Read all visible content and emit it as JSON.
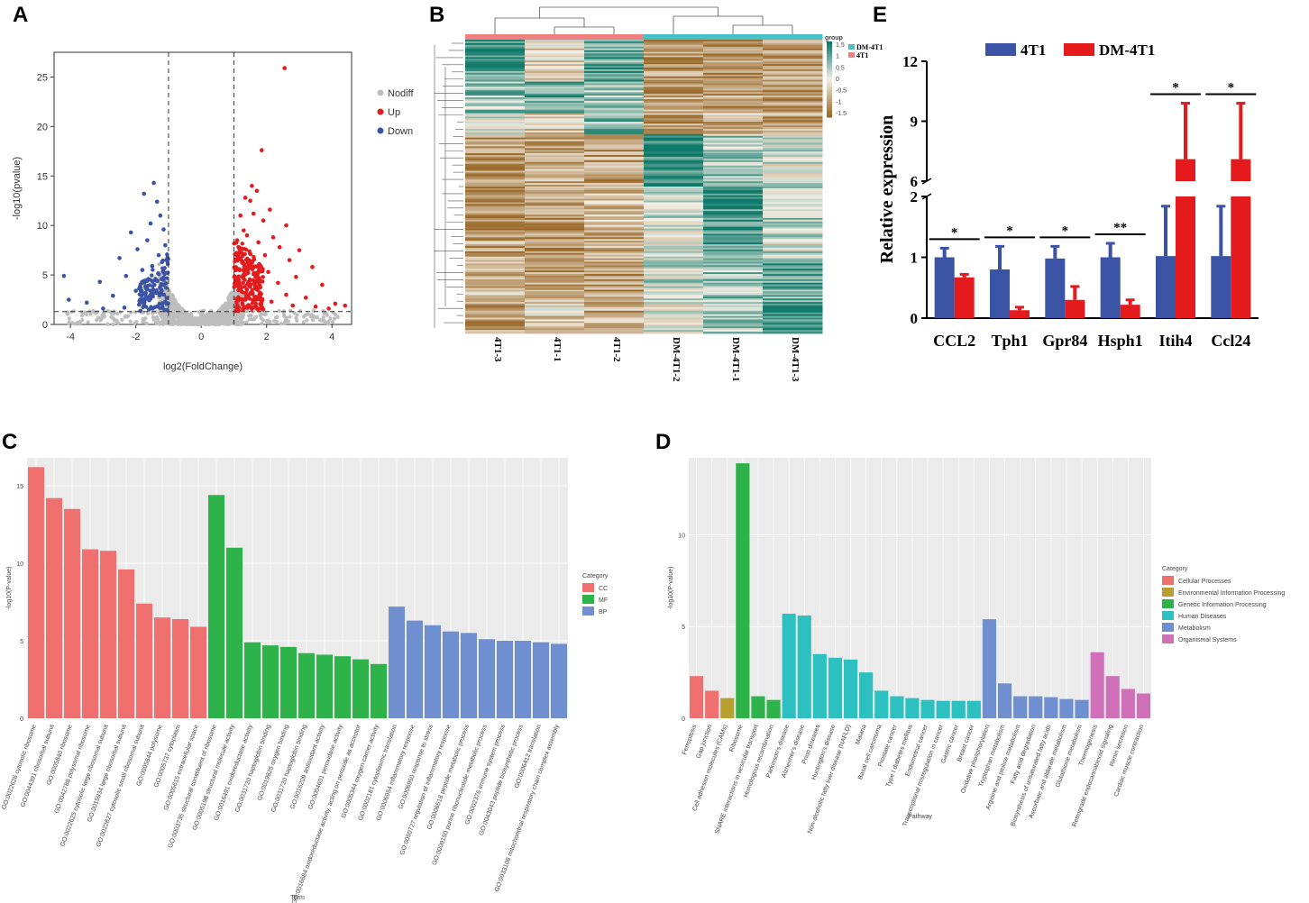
{
  "panels": {
    "A": "A",
    "B": "B",
    "C": "C",
    "D": "D",
    "E": "E"
  },
  "colors": {
    "volcano_nodiff": "#bdbdbd",
    "volcano_up": "#e41a1c",
    "volcano_down": "#3a53a4",
    "heat_low": "#9a6a2a",
    "heat_mid": "#f4efe6",
    "heat_high": "#0f7a6a",
    "group_4T1": "#f08080",
    "group_DM": "#48c0c8",
    "cc": "#f07070",
    "mf": "#2db34a",
    "bp": "#6f8fd0",
    "kegg_cellular": "#f07070",
    "kegg_env": "#b8a030",
    "kegg_genetic": "#2db34a",
    "kegg_human": "#2cc0c0",
    "kegg_metab": "#6f8fd0",
    "kegg_organismal": "#d070b8",
    "bar_4T1": "#3a53a4",
    "bar_DM": "#e41a1c"
  },
  "chart_data": [
    {
      "id": "A",
      "type": "scatter",
      "title": "",
      "xlabel": "log2(FoldChange)",
      "ylabel": "-log10(pvalue)",
      "xlim": [
        -4.5,
        4.6
      ],
      "ylim": [
        0,
        27.5
      ],
      "xticks": [
        -4,
        -2,
        0,
        2,
        4
      ],
      "yticks": [
        0,
        5,
        10,
        15,
        20,
        25
      ],
      "thresholds": {
        "log2fc": [
          -1,
          1
        ],
        "neglog10p": 1.3
      },
      "legend": [
        "Nodiff",
        "Up",
        "Down"
      ],
      "series": [
        {
          "name": "Up",
          "points": [
            [
              2.55,
              25.9
            ],
            [
              1.85,
              17.6
            ],
            [
              1.55,
              14.0
            ],
            [
              1.7,
              13.5
            ],
            [
              1.35,
              12.8
            ],
            [
              1.5,
              12.5
            ],
            [
              2.1,
              11.6
            ],
            [
              1.2,
              11.0
            ],
            [
              1.6,
              11.2
            ],
            [
              1.9,
              10.5
            ],
            [
              2.6,
              10.0
            ],
            [
              1.3,
              9.5
            ],
            [
              1.4,
              9.0
            ],
            [
              2.2,
              8.8
            ],
            [
              1.1,
              8.5
            ],
            [
              1.75,
              8.3
            ],
            [
              2.4,
              7.8
            ],
            [
              3.0,
              7.5
            ],
            [
              1.25,
              7.2
            ],
            [
              1.95,
              7.0
            ],
            [
              2.7,
              6.5
            ],
            [
              1.45,
              6.2
            ],
            [
              3.4,
              5.8
            ],
            [
              1.15,
              5.6
            ],
            [
              2.05,
              5.3
            ],
            [
              1.65,
              5.0
            ],
            [
              2.9,
              4.8
            ],
            [
              1.05,
              4.5
            ],
            [
              2.35,
              4.2
            ],
            [
              3.7,
              4.0
            ],
            [
              1.5,
              3.8
            ],
            [
              1.2,
              3.5
            ],
            [
              1.8,
              3.2
            ],
            [
              2.6,
              3.0
            ],
            [
              3.2,
              2.7
            ],
            [
              1.35,
              2.5
            ],
            [
              2.15,
              2.3
            ],
            [
              4.1,
              2.1
            ],
            [
              1.1,
              2.0
            ],
            [
              2.8,
              1.9
            ],
            [
              3.5,
              1.8
            ],
            [
              4.4,
              1.9
            ],
            [
              1.6,
              1.7
            ],
            [
              3.9,
              1.6
            ],
            [
              1.9,
              1.5
            ]
          ]
        },
        {
          "name": "Down",
          "points": [
            [
              -1.45,
              14.3
            ],
            [
              -1.75,
              13.2
            ],
            [
              -1.35,
              12.4
            ],
            [
              -1.25,
              11.0
            ],
            [
              -1.55,
              10.2
            ],
            [
              -1.15,
              9.6
            ],
            [
              -2.15,
              9.3
            ],
            [
              -1.65,
              8.5
            ],
            [
              -1.1,
              8.0
            ],
            [
              -1.95,
              7.6
            ],
            [
              -1.3,
              7.0
            ],
            [
              -2.5,
              6.7
            ],
            [
              -1.2,
              6.3
            ],
            [
              -1.5,
              5.9
            ],
            [
              -1.8,
              5.5
            ],
            [
              -1.05,
              5.2
            ],
            [
              -2.3,
              4.9
            ],
            [
              -1.4,
              4.6
            ],
            [
              -3.1,
              4.3
            ],
            [
              -1.15,
              4.0
            ],
            [
              -1.7,
              3.7
            ],
            [
              -2.0,
              3.4
            ],
            [
              -1.25,
              3.1
            ],
            [
              -2.7,
              2.9
            ],
            [
              -1.55,
              2.6
            ],
            [
              -1.1,
              2.3
            ],
            [
              -3.5,
              2.2
            ],
            [
              -1.9,
              2.0
            ],
            [
              -4.2,
              4.9
            ],
            [
              -1.35,
              1.8
            ],
            [
              -4.05,
              2.5
            ],
            [
              -2.35,
              1.7
            ],
            [
              -3.0,
              1.6
            ],
            [
              -1.6,
              1.5
            ]
          ]
        }
      ]
    },
    {
      "id": "B",
      "type": "heatmap",
      "columns": [
        "4T1-3",
        "4T1-1",
        "4T1-2",
        "DM-4T1-2",
        "DM-4T1-1",
        "DM-4T1-3"
      ],
      "groups": [
        "4T1",
        "4T1",
        "4T1",
        "DM-4T1",
        "DM-4T1",
        "DM-4T1"
      ],
      "legend_title": "group",
      "legend_groups": [
        "DM-4T1",
        "4T1"
      ],
      "scale_ticks": [
        "1.5",
        "1",
        "0.5",
        "0",
        "-0.5",
        "-1",
        "-1.5"
      ],
      "scale_range": [
        -1.5,
        1.5
      ],
      "row_blocks": [
        {
          "rows": 8,
          "values": [
            1.2,
            -0.2,
            0.9,
            -1.0,
            -1.1,
            -0.9
          ]
        },
        {
          "rows": 6,
          "values": [
            0.6,
            0.9,
            0.4,
            -0.9,
            -0.8,
            -1.0
          ]
        },
        {
          "rows": 4,
          "values": [
            0.3,
            -0.3,
            0.7,
            -1.0,
            -0.7,
            -0.8
          ]
        },
        {
          "rows": 10,
          "values": [
            -1.0,
            -0.8,
            -0.9,
            1.4,
            0.5,
            0.2
          ]
        },
        {
          "rows": 8,
          "values": [
            -1.1,
            -0.9,
            -0.7,
            0.2,
            1.3,
            0.4
          ]
        },
        {
          "rows": 6,
          "values": [
            -0.9,
            -1.1,
            -0.8,
            0.0,
            1.1,
            0.3
          ]
        },
        {
          "rows": 8,
          "values": [
            -0.6,
            -0.9,
            -1.0,
            0.3,
            0.6,
            1.0
          ]
        },
        {
          "rows": 6,
          "values": [
            -1.0,
            -0.4,
            -0.8,
            0.1,
            0.4,
            1.4
          ]
        }
      ]
    },
    {
      "id": "C",
      "type": "bar",
      "title": "",
      "xlabel": "Term",
      "ylabel": "-log10(P-value)",
      "ylim": [
        0,
        16.8
      ],
      "yticks": [
        0,
        5,
        10,
        15
      ],
      "legend_title": "Category",
      "legend": [
        "CC",
        "MF",
        "BP"
      ],
      "categories": [
        "GO:0022626 cytosolic ribosome",
        "GO:0044391 ribosomal subunit",
        "GO:0005840 ribosome",
        "GO:0042788 polysomal ribosome",
        "GO:0022625 cytosolic large ribosomal subunit",
        "GO:0015934 large ribosomal subunit",
        "GO:0022627 cytosolic small ribosomal subunit",
        "GO:0005844 polysome",
        "GO:0005737 cytoplasm",
        "GO:0005615 extracellular space",
        "GO:0003735 structural constituent of ribosome",
        "GO:0005198 structural molecule activity",
        "GO:0016491 oxidoreductase activity",
        "GO:0031720 haptoglobin binding",
        "GO:0019825 oxygen binding",
        "GO:0031720 haptoglobin binding",
        "GO:0016209 antioxidant activity",
        "GO:0004601 peroxidase activity",
        "GO:0016684 oxidoreductase activity, acting on peroxide as acceptor",
        "GO:0005344 oxygen carrier activity",
        "GO:0002181 cytoplasmic translation",
        "GO:0006954 inflammatory response",
        "GO:0006950 response to stress",
        "GO:0050727 regulation of inflammatory response",
        "GO:0006518 peptide metabolic process",
        "GO:0009150 purine ribonucleotide metabolic process",
        "GO:0002376 immune system process",
        "GO:0043043 peptide biosynthetic process",
        "GO:0006412 translation",
        "GO:0033108 mitochondrial respiratory chain complex assembly"
      ],
      "category_groups": [
        "CC",
        "CC",
        "CC",
        "CC",
        "CC",
        "CC",
        "CC",
        "CC",
        "CC",
        "CC",
        "MF",
        "MF",
        "MF",
        "MF",
        "MF",
        "MF",
        "MF",
        "MF",
        "MF",
        "MF",
        "BP",
        "BP",
        "BP",
        "BP",
        "BP",
        "BP",
        "BP",
        "BP",
        "BP",
        "BP"
      ],
      "values": [
        16.2,
        14.2,
        13.5,
        10.9,
        10.8,
        9.6,
        7.4,
        6.5,
        6.4,
        5.9,
        14.4,
        11.0,
        4.9,
        4.7,
        4.6,
        4.2,
        4.1,
        4.0,
        3.8,
        3.5,
        7.2,
        6.3,
        6.0,
        5.6,
        5.5,
        5.1,
        5.0,
        5.0,
        4.9,
        4.8
      ]
    },
    {
      "id": "D",
      "type": "bar",
      "title": "",
      "xlabel": "Pathway",
      "ylabel": "-log10(P-value)",
      "ylim": [
        0,
        14.2
      ],
      "yticks": [
        0,
        5,
        10
      ],
      "legend_title": "Category",
      "legend": [
        "Cellular Processes",
        "Environmental Information Processing",
        "Genetic Information Processing",
        "Human Diseases",
        "Metabolism",
        "Organismal Systems"
      ],
      "categories": [
        "Ferroptosis",
        "Gap junction",
        "Cell adhesion molecules (CAMs)",
        "Ribosome",
        "SNARE interactions in vesicular transport",
        "Homologous recombination",
        "Parkinson's disease",
        "Alzheimer's disease",
        "Prion diseases",
        "Huntington's disease",
        "Non-alcoholic fatty liver disease (NAFLD)",
        "Malaria",
        "Basal cell carcinoma",
        "Prostate cancer",
        "Type I diabetes mellitus",
        "Endometrial cancer",
        "Transcriptional misregulation in cancer",
        "Gastric cancer",
        "Breast cancer",
        "Oxidative phosphorylation",
        "Tryptophan metabolism",
        "Arginine and proline metabolism",
        "Fatty acid degradation",
        "Biosynthesis of unsaturated fatty acids",
        "Ascorbate and aldarate metabolism",
        "Glutathione metabolism",
        "Thermogenesis",
        "Retrograde endocannabinoid signaling",
        "Renin secretion",
        "Cardiac muscle contraction"
      ],
      "category_groups": [
        "Cellular Processes",
        "Cellular Processes",
        "Environmental Information Processing",
        "Genetic Information Processing",
        "Genetic Information Processing",
        "Genetic Information Processing",
        "Human Diseases",
        "Human Diseases",
        "Human Diseases",
        "Human Diseases",
        "Human Diseases",
        "Human Diseases",
        "Human Diseases",
        "Human Diseases",
        "Human Diseases",
        "Human Diseases",
        "Human Diseases",
        "Human Diseases",
        "Human Diseases",
        "Metabolism",
        "Metabolism",
        "Metabolism",
        "Metabolism",
        "Metabolism",
        "Metabolism",
        "Metabolism",
        "Organismal Systems",
        "Organismal Systems",
        "Organismal Systems",
        "Organismal Systems"
      ],
      "values": [
        2.3,
        1.5,
        1.1,
        13.9,
        1.2,
        1.0,
        5.7,
        5.6,
        3.5,
        3.3,
        3.2,
        2.5,
        1.5,
        1.2,
        1.1,
        1.0,
        0.95,
        0.95,
        0.95,
        5.4,
        1.9,
        1.2,
        1.2,
        1.15,
        1.05,
        1.0,
        3.6,
        2.3,
        1.6,
        1.35
      ]
    },
    {
      "id": "E",
      "type": "bar",
      "title": "",
      "xlabel": "",
      "ylabel": "Relative expression",
      "axis_break": [
        2,
        6
      ],
      "ylim": [
        0,
        12
      ],
      "yticks": [
        0,
        1,
        2,
        6,
        9,
        12
      ],
      "categories": [
        "CCL2",
        "Tph1",
        "Gpr84",
        "Hsph1",
        "Itih4",
        "Ccl24"
      ],
      "series": [
        {
          "name": "4T1",
          "values": [
            1.0,
            0.8,
            0.98,
            1.0,
            1.02,
            1.02
          ],
          "errors": [
            0.15,
            0.38,
            0.2,
            0.23,
            0.82,
            0.82
          ]
        },
        {
          "name": "DM-4T1",
          "values": [
            0.67,
            0.13,
            0.3,
            0.22,
            7.1,
            7.1
          ],
          "errors": [
            0.05,
            0.05,
            0.22,
            0.08,
            2.8,
            2.8
          ]
        }
      ],
      "significance": [
        "*",
        "*",
        "*",
        "**",
        "*",
        "*"
      ]
    }
  ]
}
